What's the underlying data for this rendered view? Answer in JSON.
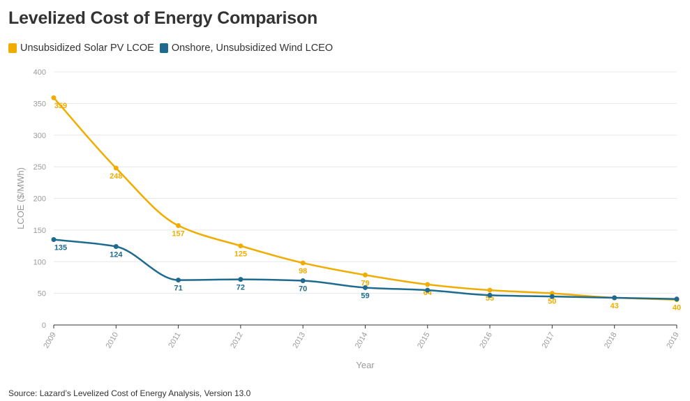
{
  "chart_data": {
    "type": "line",
    "title": "Levelized Cost of Energy Comparison",
    "xlabel": "Year",
    "ylabel": "LCOE ($/MWh)",
    "x": [
      "2009",
      "2010",
      "2011",
      "2012",
      "2013",
      "2014",
      "2015",
      "2016",
      "2017",
      "2018",
      "2019"
    ],
    "ylim": [
      0,
      400
    ],
    "yticks": [
      "0",
      "50",
      "100",
      "150",
      "200",
      "250",
      "300",
      "350",
      "400"
    ],
    "grid": true,
    "legend_position": "top-left",
    "series": [
      {
        "name": "Unsubsidized Solar PV LCOE",
        "color": "#f0ac00",
        "values": [
          359,
          248,
          157,
          125,
          98,
          79,
          64,
          55,
          50,
          43,
          40
        ],
        "labels": [
          "359",
          "248",
          "157",
          "125",
          "98",
          "79",
          "64",
          "55",
          "50",
          "43",
          "40"
        ]
      },
      {
        "name": "Onshore, Unsubsidized Wind LCEO",
        "color": "#1f6a8f",
        "values": [
          135,
          124,
          71,
          72,
          70,
          59,
          55,
          47,
          45,
          43,
          41
        ],
        "labels": [
          "135",
          "124",
          "71",
          "72",
          "70",
          "59",
          null,
          null,
          null,
          null,
          null
        ]
      }
    ],
    "source": "Source: Lazard’s Levelized Cost of Energy Analysis, Version 13.0"
  }
}
